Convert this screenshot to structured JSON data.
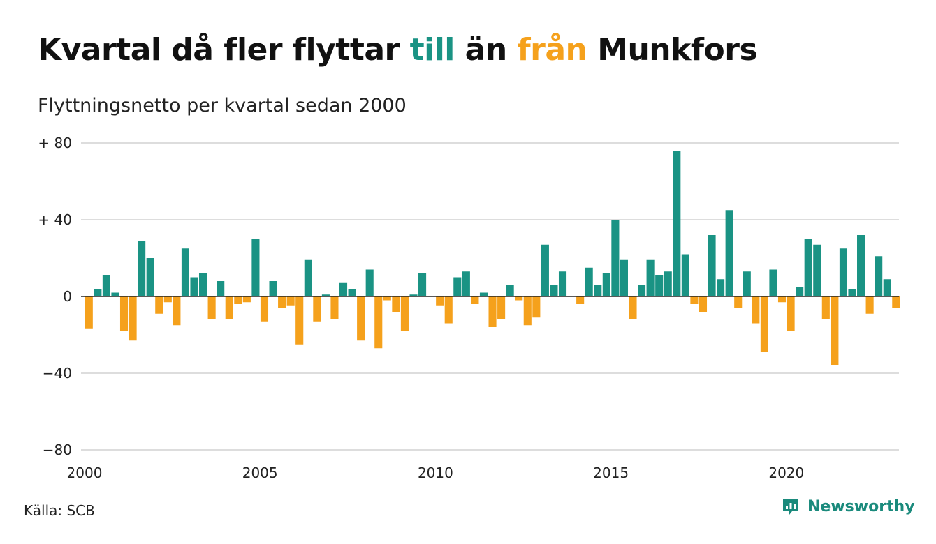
{
  "title": {
    "part1": "Kvartal då fler flyttar ",
    "till": "till",
    "part2": " än ",
    "fran": "från",
    "part3": " Munkfors"
  },
  "subtitle": "Flyttningsnetto per kvartal sedan 2000",
  "source": "Källa: SCB",
  "brand": {
    "name": "Newsworthy",
    "icon": "newsworthy-logo-icon"
  },
  "colors": {
    "positive": "#1a9384",
    "negative": "#f5a11c",
    "grid": "#dddddd",
    "zero_line": "#222222",
    "brand": "#1a8a7c"
  },
  "chart_data": {
    "type": "bar",
    "title": "Kvartal då fler flyttar till än från Munkfors",
    "subtitle": "Flyttningsnetto per kvartal sedan 2000",
    "xlabel": "",
    "ylabel": "",
    "ylim": [
      -80,
      80
    ],
    "yticks": [
      {
        "value": 80,
        "label": "+ 80"
      },
      {
        "value": 40,
        "label": "+ 40"
      },
      {
        "value": 0,
        "label": "0"
      },
      {
        "value": -40,
        "label": "−40"
      },
      {
        "value": -80,
        "label": "−80"
      }
    ],
    "xticks": [
      "2000",
      "2005",
      "2010",
      "2015",
      "2020"
    ],
    "start_year": 2000,
    "grid": true,
    "legend": "none",
    "color_rule": "positive values teal, negative values orange",
    "values": [
      -17,
      4,
      11,
      2,
      -18,
      -23,
      29,
      20,
      -9,
      -3,
      -15,
      25,
      10,
      12,
      -12,
      8,
      -12,
      -4,
      -3,
      30,
      -13,
      8,
      -6,
      -5,
      -25,
      19,
      -13,
      1,
      -12,
      7,
      4,
      -23,
      14,
      -27,
      -2,
      -8,
      -18,
      1,
      12,
      0,
      -5,
      -14,
      10,
      13,
      -4,
      2,
      -16,
      -12,
      6,
      -2,
      -15,
      -11,
      27,
      6,
      13,
      0,
      -4,
      15,
      6,
      12,
      40,
      19,
      -12,
      6,
      19,
      11,
      13,
      76,
      22,
      -4,
      -8,
      32,
      9,
      45,
      -6,
      13,
      -14,
      -29,
      14,
      -3,
      -18,
      5,
      30,
      27,
      -12,
      -36,
      25,
      4,
      32,
      -9,
      21,
      9,
      -6
    ]
  }
}
